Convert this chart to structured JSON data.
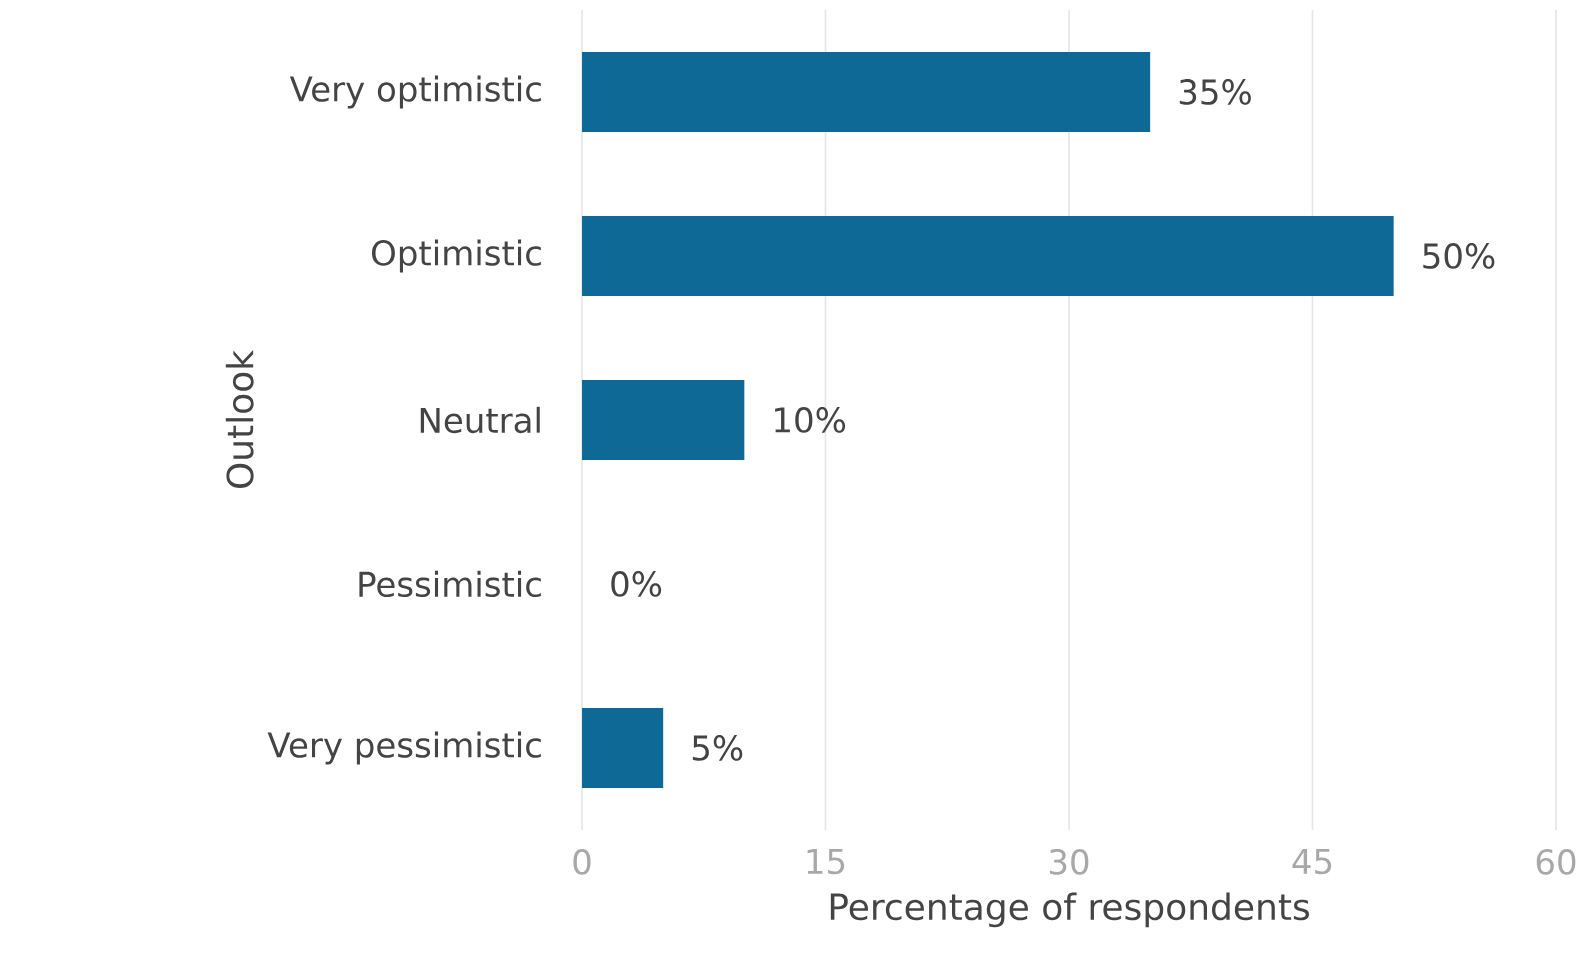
{
  "chart_data": {
    "type": "bar",
    "orientation": "horizontal",
    "xlabel": "Percentage of respondents",
    "ylabel": "Outlook",
    "categories": [
      "Very optimistic",
      "Optimistic",
      "Neutral",
      "Pessimistic",
      "Very pessimistic"
    ],
    "values": [
      35,
      50,
      10,
      0,
      5
    ],
    "value_labels": [
      "35%",
      "50%",
      "10%",
      "0%",
      "5%"
    ],
    "color": "#0f6996",
    "xlim": [
      0,
      60
    ],
    "xticks": [
      0,
      15,
      30,
      45,
      60
    ],
    "grid": "x"
  }
}
